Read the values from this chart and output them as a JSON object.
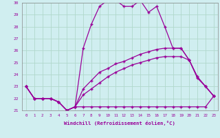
{
  "xlabel": "Windchill (Refroidissement éolien,°C)",
  "bg_color": "#d0eef0",
  "grid_color": "#b0d8cc",
  "line_color": "#990099",
  "xlim": [
    -0.5,
    23.5
  ],
  "ylim": [
    21,
    30
  ],
  "yticks": [
    21,
    22,
    23,
    24,
    25,
    26,
    27,
    28,
    29,
    30
  ],
  "xticks": [
    0,
    1,
    2,
    3,
    4,
    5,
    6,
    7,
    8,
    9,
    10,
    11,
    12,
    13,
    14,
    15,
    16,
    17,
    18,
    19,
    20,
    21,
    22,
    23
  ],
  "series1": [
    23,
    22,
    22,
    22,
    21.7,
    21,
    21.3,
    26.2,
    28.2,
    29.7,
    30.2,
    30.2,
    29.7,
    29.7,
    30.2,
    29.2,
    29.7,
    28,
    26.2,
    26.2,
    25.2,
    23.7,
    23.0,
    22.2
  ],
  "series2": [
    23,
    22,
    22,
    22,
    21.7,
    21,
    21.3,
    21.3,
    21.3,
    21.3,
    21.3,
    21.3,
    21.3,
    21.3,
    21.3,
    21.3,
    21.3,
    21.3,
    21.3,
    21.3,
    21.3,
    21.3,
    21.3,
    22.2
  ],
  "series3": [
    23,
    22,
    22,
    22,
    21.7,
    21,
    21.3,
    22.8,
    23.5,
    24.2,
    24.5,
    24.9,
    25.1,
    25.4,
    25.7,
    25.9,
    26.1,
    26.2,
    26.2,
    26.2,
    25.2,
    23.8,
    23.0,
    22.2
  ],
  "series4": [
    23,
    22,
    22,
    22,
    21.7,
    21,
    21.3,
    22.3,
    22.8,
    23.3,
    23.8,
    24.2,
    24.5,
    24.8,
    25.0,
    25.2,
    25.4,
    25.5,
    25.5,
    25.5,
    25.2,
    23.8,
    23.0,
    22.2
  ]
}
